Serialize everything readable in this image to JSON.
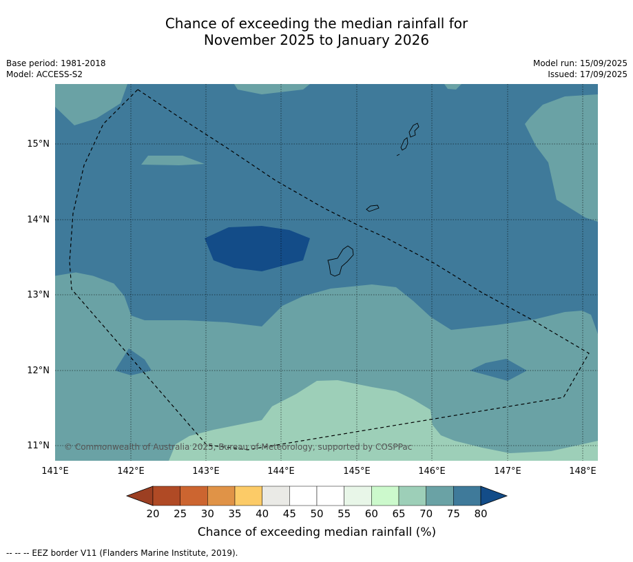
{
  "title_line1": "Chance of exceeding the median rainfall for",
  "title_line2": "November 2025 to January 2026",
  "meta": {
    "base_period": "Base period: 1981-2018",
    "model": "Model: ACCESS-S2",
    "model_run": "Model run: 15/09/2025",
    "issued": "Issued: 17/09/2025"
  },
  "copyright": "© Commonwealth of Australia 2025, Bureau of Meteorology, supported by COSPPac",
  "footnote": "--  --  -- EEZ border V11 (Flanders Marine Institute, 2019).",
  "chart_data": {
    "type": "heatmap",
    "map": {
      "lon_ticks": [
        "141°E",
        "142°E",
        "143°E",
        "144°E",
        "145°E",
        "146°E",
        "147°E",
        "148°E"
      ],
      "lat_ticks": [
        "15°N",
        "14°N",
        "13°N",
        "12°N",
        "11°N"
      ],
      "lon_range": [
        141.0,
        148.2
      ],
      "lat_range": [
        10.8,
        15.8
      ],
      "grid": true
    },
    "colorbar": {
      "label": "Chance of exceeding median rainfall (%)",
      "ticks": [
        "20",
        "25",
        "30",
        "35",
        "40",
        "45",
        "50",
        "55",
        "60",
        "65",
        "70",
        "75",
        "80"
      ],
      "colors": [
        "#9c3f22",
        "#b04a25",
        "#cc6530",
        "#e09347",
        "#fccb67",
        "#eaeae6",
        "#ffffff",
        "#ffffff",
        "#e8f6e8",
        "#ccf9cc",
        "#9dcfb8",
        "#6aa2a5",
        "#3f7a9a",
        "#134c88"
      ],
      "extend": "both"
    }
  }
}
